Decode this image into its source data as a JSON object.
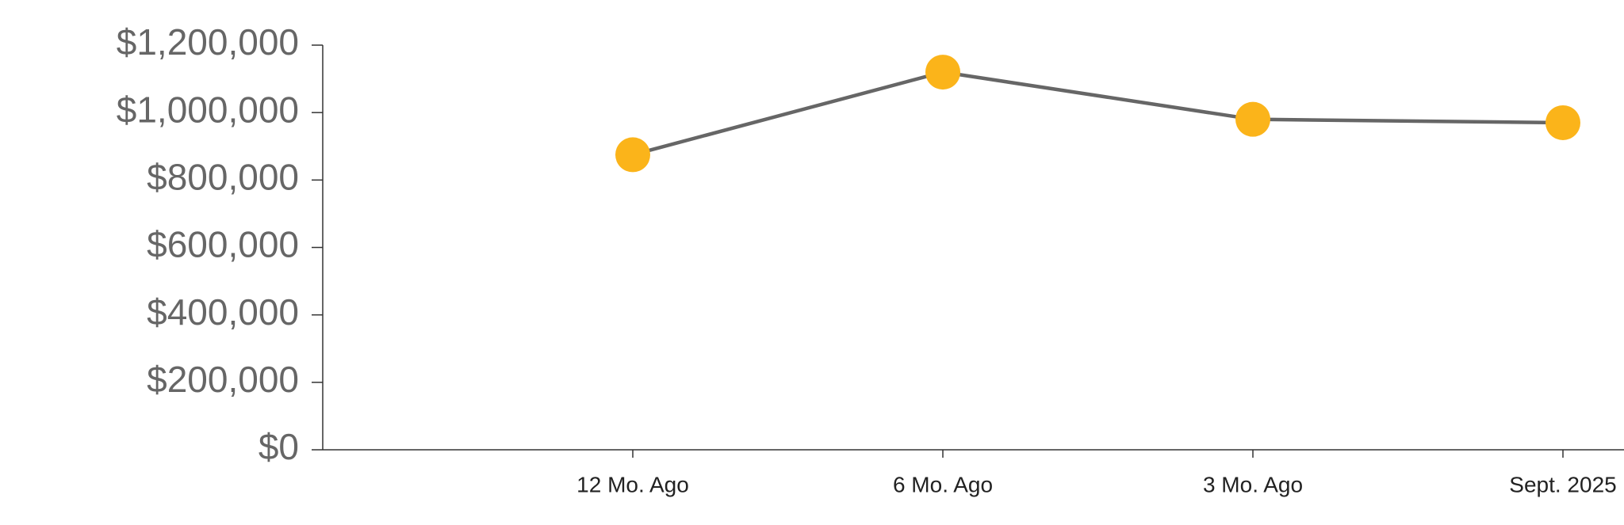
{
  "chart_data": {
    "type": "line",
    "categories": [
      "12 Mo. Ago",
      "6 Mo. Ago",
      "3 Mo. Ago",
      "Sept. 2025"
    ],
    "series": [
      {
        "name": null,
        "color": "#fbb41a",
        "line_color": "#666666",
        "values": [
          875000,
          1120000,
          980000,
          970000
        ]
      }
    ],
    "ylim": [
      0,
      1200000
    ],
    "yticks": [
      {
        "value": 0,
        "label": "$0"
      },
      {
        "value": 200000,
        "label": "$200,000"
      },
      {
        "value": 400000,
        "label": "$400,000"
      },
      {
        "value": 600000,
        "label": "$600,000"
      },
      {
        "value": 800000,
        "label": "$800,000"
      },
      {
        "value": 1000000,
        "label": "$1,000,000"
      },
      {
        "value": 1200000,
        "label": "$1,200,000"
      }
    ],
    "grid": false
  }
}
